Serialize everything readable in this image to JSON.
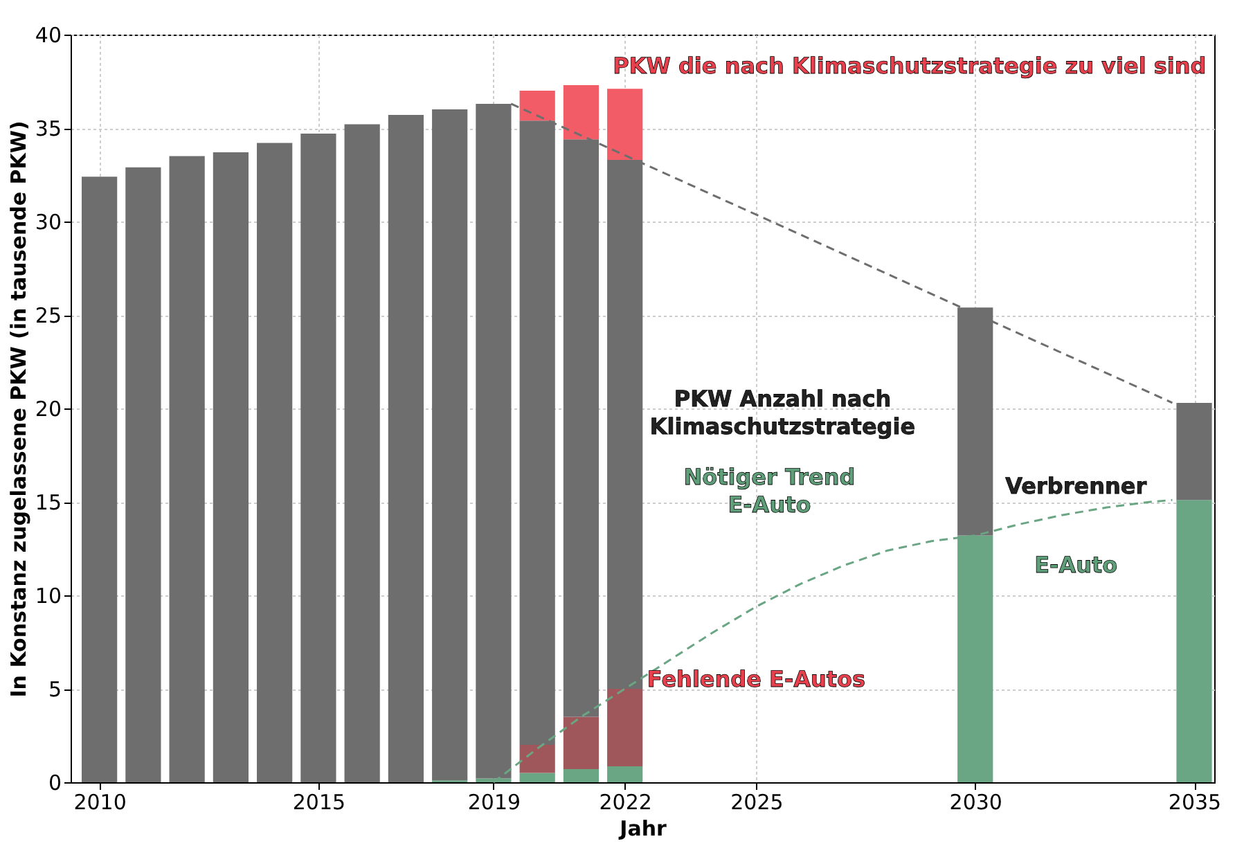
{
  "chart_data": {
    "type": "bar",
    "stacked": true,
    "xlabel": "Jahr",
    "ylabel": "In Konstanz zugelassene PKW (in tausende PKW)",
    "x": [
      2010,
      2011,
      2012,
      2013,
      2014,
      2015,
      2016,
      2017,
      2018,
      2019,
      2020,
      2021,
      2022,
      2030,
      2035
    ],
    "series": [
      {
        "color": "#6aa584",
        "values": [
          null,
          null,
          null,
          null,
          null,
          null,
          null,
          null,
          0.1,
          0.2,
          0.5,
          0.7,
          0.85,
          13.2,
          15.1
        ]
      },
      {
        "color": "#a0575b",
        "values": [
          null,
          null,
          null,
          null,
          null,
          null,
          null,
          null,
          null,
          null,
          1.5,
          2.8,
          4.15,
          null,
          null
        ]
      },
      {
        "color": "#6e6e6e",
        "values": [
          32.4,
          32.9,
          33.5,
          33.7,
          34.2,
          34.7,
          35.2,
          35.7,
          35.9,
          36.1,
          33.4,
          30.9,
          28.3,
          12.2,
          5.2
        ]
      },
      {
        "color": "#f25c66",
        "values": [
          null,
          null,
          null,
          null,
          null,
          null,
          null,
          null,
          null,
          null,
          1.6,
          2.9,
          3.8,
          null,
          null
        ]
      },
      {
        "type": "line",
        "line_style": "dashed",
        "color": "#6e6e6e",
        "x": [
          2019.4,
          2034.5
        ],
        "values": [
          36.3,
          20.3
        ]
      },
      {
        "type": "line",
        "line_style": "dashed",
        "color": "#6aa584",
        "x": [
          2019,
          2020,
          2021,
          2022,
          2023,
          2024,
          2025,
          2026,
          2027,
          2028,
          2029,
          2030,
          2031,
          2032,
          2033,
          2034,
          2034.5
        ],
        "values": [
          0,
          1.8,
          3.5,
          5.0,
          6.5,
          8.0,
          9.4,
          10.6,
          11.6,
          12.4,
          12.9,
          13.2,
          13.8,
          14.3,
          14.7,
          15.0,
          15.1
        ]
      }
    ],
    "xlim": [
      2009.5,
      2035.3
    ],
    "xticks": [
      2010,
      2015,
      2019,
      2022,
      2025,
      2030,
      2035
    ],
    "ylim": [
      0,
      40
    ],
    "yticks": [
      0,
      5,
      10,
      15,
      20,
      25,
      30,
      35,
      40
    ],
    "grid": true,
    "annotations": [
      "PKW die nach Klimaschutzstrategie zu viel sind",
      "PKW Anzahl nach\nKlimaschutzstrategie",
      "Nötiger Trend\nE-Auto",
      "Verbrenner",
      "E-Auto",
      "Fehlende E-Autos"
    ]
  }
}
